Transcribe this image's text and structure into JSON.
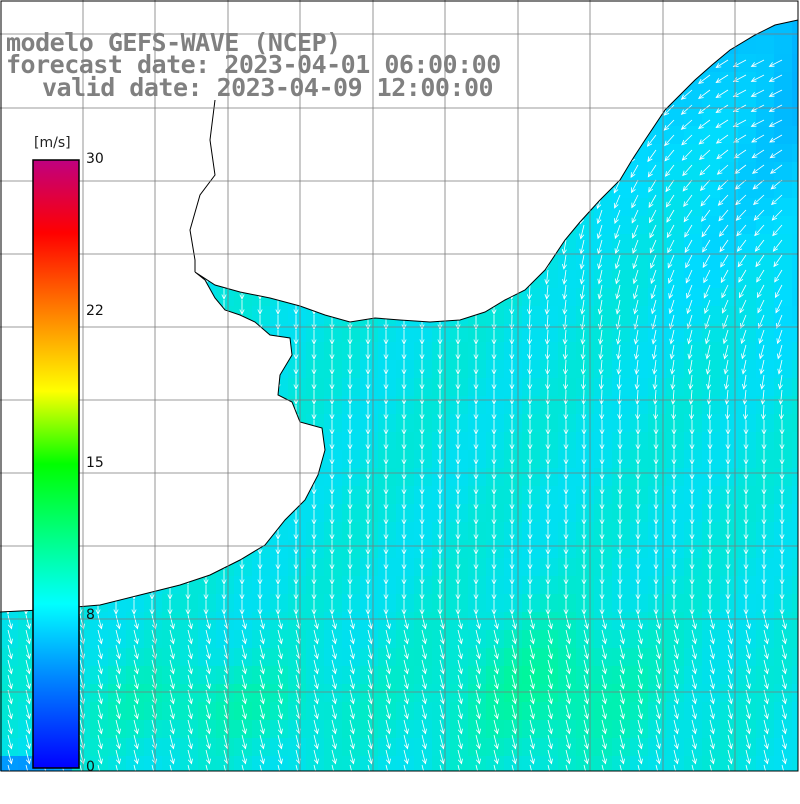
{
  "title": {
    "line1": "modelo GEFS-WAVE (NCEP)",
    "line2": "forecast date: 2023-04-01 06:00:00",
    "line3": "valid date: 2023-04-09 12:00:00"
  },
  "colorbar": {
    "unit_label": "[m/s]",
    "ticks": [
      "30",
      "22",
      "15",
      "8",
      "0"
    ],
    "tick_values": [
      30,
      22,
      15,
      8,
      0
    ],
    "min": 0,
    "max": 30,
    "colors": [
      "#0000ff",
      "#00aaff",
      "#00ffff",
      "#00ff00",
      "#ffff00",
      "#ff8000",
      "#ff0000",
      "#c00080"
    ]
  },
  "map": {
    "land_color": "#ffffff",
    "coast_color": "#000000",
    "grid_color": "#808080",
    "arrow_color": "#ffffff",
    "field": "wind speed",
    "field_range": [
      0,
      30
    ]
  }
}
